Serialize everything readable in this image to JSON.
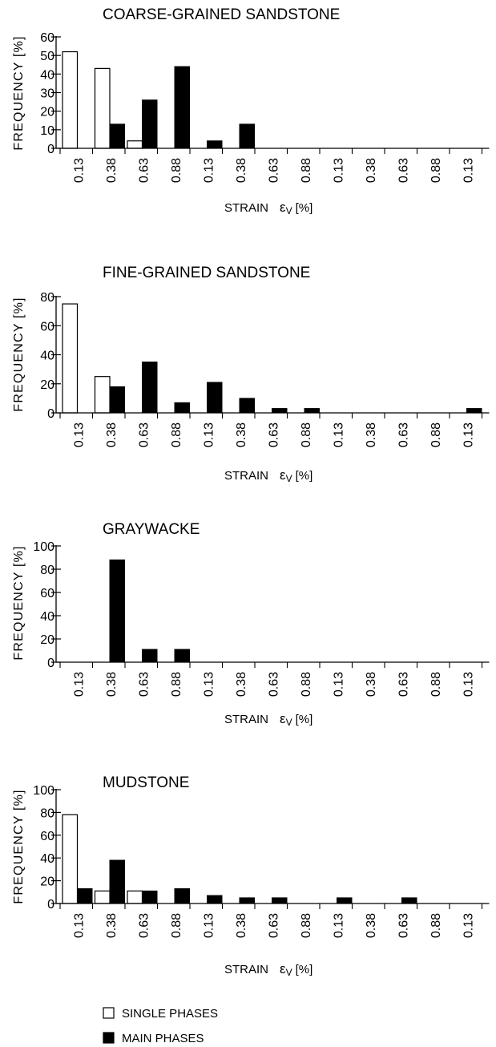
{
  "chart_data": [
    {
      "type": "bar",
      "title": "COARSE-GRAINED  SANDSTONE",
      "ylabel": "FREQUENCY [%]",
      "xlabel": "STRAIN",
      "xlabel_symbol": "ε",
      "xlabel_subscript": "V",
      "xlabel_unit": "[%]",
      "ylim": [
        0,
        60
      ],
      "yticks": [
        0,
        10,
        20,
        30,
        40,
        50,
        60
      ],
      "categories": [
        "0.13",
        "0.38",
        "0.63",
        "0.88",
        "0.13",
        "0.38",
        "0.63",
        "0.88",
        "0.13",
        "0.38",
        "0.63",
        "0.88",
        "0.13"
      ],
      "series": [
        {
          "name": "SINGLE PHASES",
          "values": [
            52,
            43,
            4,
            0,
            0,
            0,
            0,
            0,
            0,
            0,
            0,
            0,
            0
          ]
        },
        {
          "name": "MAIN PHASES",
          "values": [
            0,
            13,
            26,
            44,
            4,
            13,
            0,
            0,
            0,
            0,
            0,
            0,
            0
          ]
        }
      ]
    },
    {
      "type": "bar",
      "title": "FINE-GRAINED  SANDSTONE",
      "ylabel": "FREQUENCY [%]",
      "xlabel": "STRAIN",
      "xlabel_symbol": "ε",
      "xlabel_subscript": "V",
      "xlabel_unit": "[%]",
      "ylim": [
        0,
        80
      ],
      "yticks": [
        0,
        20,
        40,
        60,
        80
      ],
      "categories": [
        "0.13",
        "0.38",
        "0.63",
        "0.88",
        "0.13",
        "0.38",
        "0.63",
        "0.88",
        "0.13",
        "0.38",
        "0.63",
        "0.88",
        "0.13"
      ],
      "series": [
        {
          "name": "SINGLE PHASES",
          "values": [
            75,
            25,
            0,
            0,
            0,
            0,
            0,
            0,
            0,
            0,
            0,
            0,
            0
          ]
        },
        {
          "name": "MAIN PHASES",
          "values": [
            0,
            18,
            35,
            7,
            21,
            10,
            3,
            3,
            0,
            0,
            0,
            0,
            3
          ]
        }
      ]
    },
    {
      "type": "bar",
      "title": "GRAYWACKE",
      "ylabel": "FREQUENCY [%]",
      "xlabel": "STRAIN",
      "xlabel_symbol": "ε",
      "xlabel_subscript": "V",
      "xlabel_unit": "[%]",
      "ylim": [
        0,
        100
      ],
      "yticks": [
        0,
        20,
        40,
        60,
        80,
        100
      ],
      "categories": [
        "0.13",
        "0.38",
        "0.63",
        "0.88",
        "0.13",
        "0.38",
        "0.63",
        "0.88",
        "0.13",
        "0.38",
        "0.63",
        "0.88",
        "0.13"
      ],
      "series": [
        {
          "name": "SINGLE PHASES",
          "values": [
            0,
            0,
            0,
            0,
            0,
            0,
            0,
            0,
            0,
            0,
            0,
            0,
            0
          ]
        },
        {
          "name": "MAIN PHASES",
          "values": [
            0,
            88,
            11,
            11,
            0,
            0,
            0,
            0,
            0,
            0,
            0,
            0,
            0
          ]
        }
      ]
    },
    {
      "type": "bar",
      "title": "MUDSTONE",
      "ylabel": "FREQUENCY [%]",
      "xlabel": "STRAIN",
      "xlabel_symbol": "ε",
      "xlabel_subscript": "V",
      "xlabel_unit": "[%]",
      "ylim": [
        0,
        100
      ],
      "yticks": [
        0,
        20,
        40,
        60,
        80,
        100
      ],
      "categories": [
        "0.13",
        "0.38",
        "0.63",
        "0.88",
        "0.13",
        "0.38",
        "0.63",
        "0.88",
        "0.13",
        "0.38",
        "0.63",
        "0.88",
        "0.13"
      ],
      "series": [
        {
          "name": "SINGLE PHASES",
          "values": [
            78,
            11,
            11,
            0,
            0,
            0,
            0,
            0,
            0,
            0,
            0,
            0,
            0
          ]
        },
        {
          "name": "MAIN PHASES",
          "values": [
            13,
            38,
            11,
            13,
            7,
            5,
            5,
            0,
            5,
            0,
            5,
            0,
            0
          ]
        }
      ]
    }
  ],
  "legend": [
    {
      "label": "SINGLE PHASES",
      "fill": "#ffffff"
    },
    {
      "label": "MAIN PHASES",
      "fill": "#000000"
    }
  ]
}
